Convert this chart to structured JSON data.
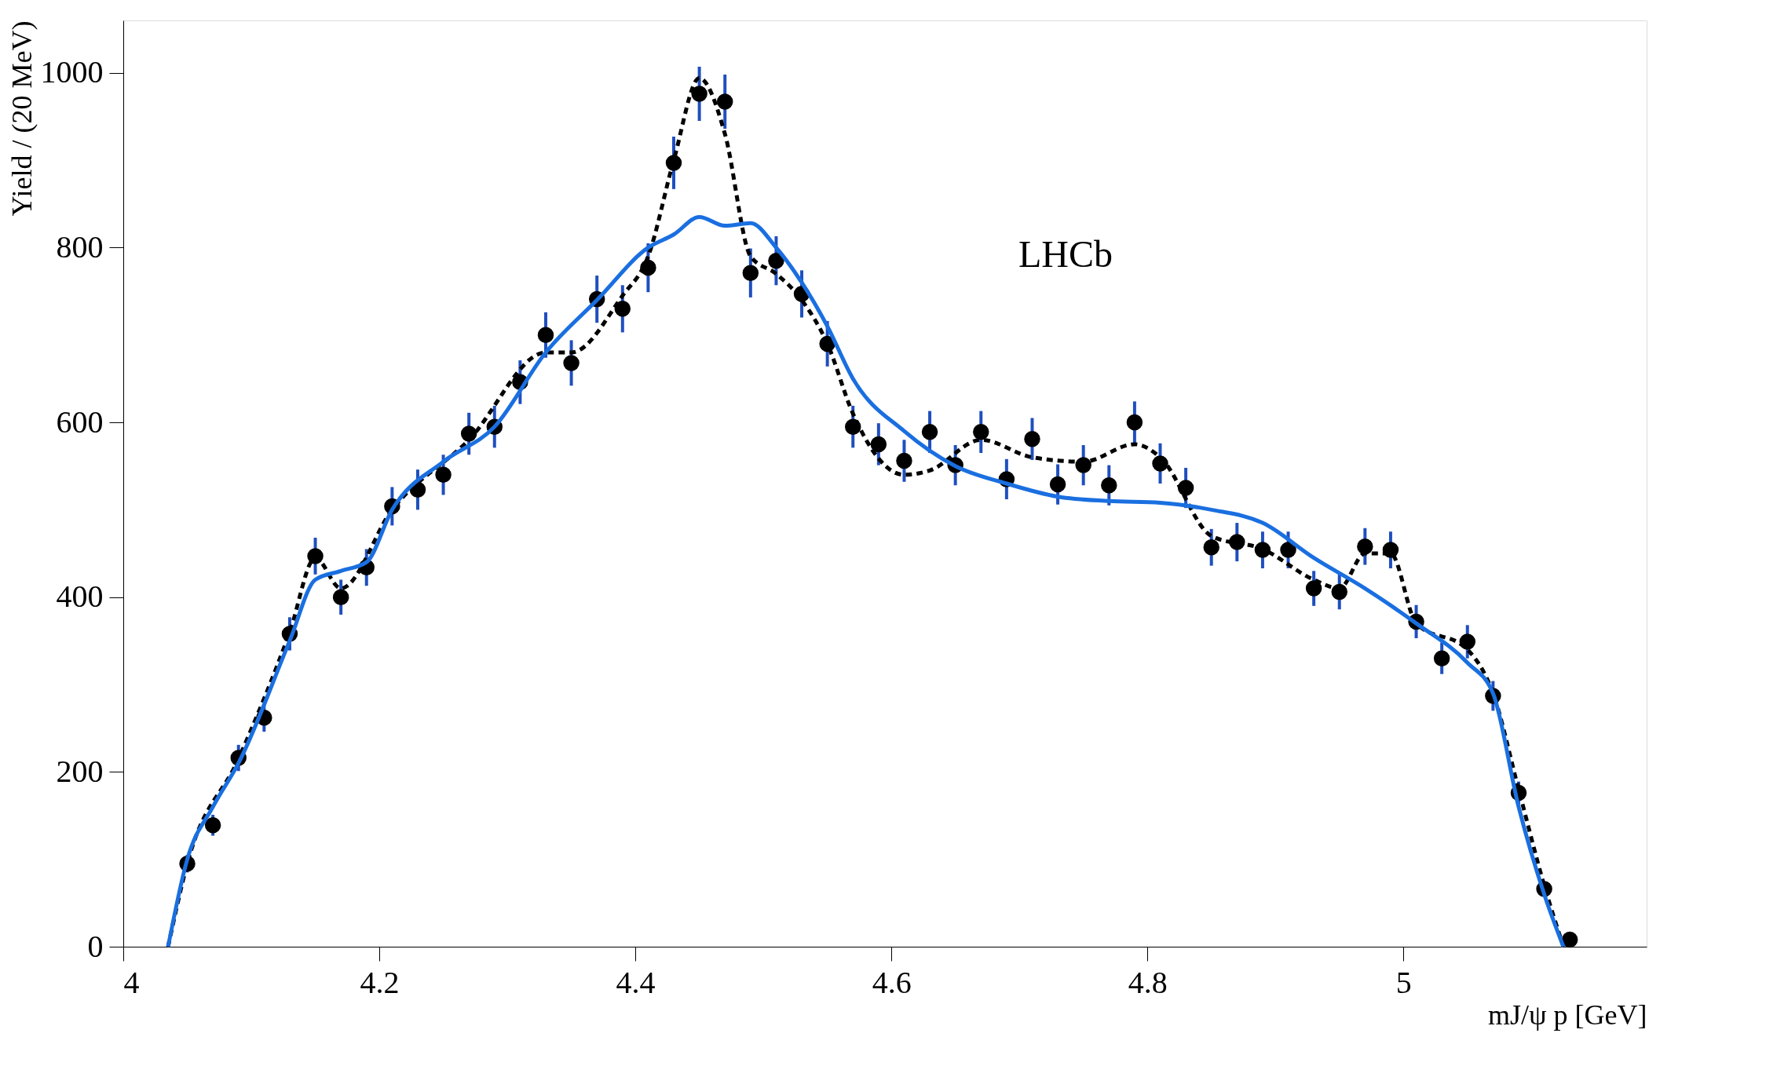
{
  "chart_data": {
    "type": "scatter",
    "ylabel": "Yield / (20 MeV)",
    "xlabel": "mJ/ψ p [GeV]",
    "xlim": [
      4,
      5.19
    ],
    "ylim": [
      0,
      1060
    ],
    "xticks": [
      4,
      4.2,
      4.4,
      4.6,
      4.8,
      5
    ],
    "yticks": [
      0,
      200,
      400,
      600,
      800,
      1000
    ],
    "grid": false,
    "annotations": [
      "LHCb"
    ],
    "series": [
      {
        "color": "#000000",
        "marker": "circle",
        "x": [
          4.05,
          4.07,
          4.09,
          4.11,
          4.13,
          4.15,
          4.17,
          4.19,
          4.21,
          4.23,
          4.25,
          4.27,
          4.29,
          4.31,
          4.33,
          4.35,
          4.37,
          4.39,
          4.41,
          4.43,
          4.45,
          4.47,
          4.49,
          4.51,
          4.53,
          4.55,
          4.57,
          4.59,
          4.61,
          4.63,
          4.65,
          4.67,
          4.69,
          4.71,
          4.73,
          4.75,
          4.77,
          4.79,
          4.81,
          4.83,
          4.85,
          4.87,
          4.89,
          4.91,
          4.93,
          4.95,
          4.97,
          4.99,
          5.01,
          5.03,
          5.05,
          5.07,
          5.09,
          5.11,
          5.13
        ],
        "values": [
          95,
          139,
          216,
          262,
          358,
          447,
          400,
          434,
          504,
          523,
          540,
          587,
          595,
          646,
          700,
          668,
          741,
          730,
          777,
          897,
          976,
          967,
          771,
          785,
          747,
          690,
          595,
          575,
          556,
          589,
          551,
          589,
          535,
          581,
          529,
          551,
          528,
          600,
          553,
          525,
          457,
          463,
          454,
          454,
          410,
          406,
          458,
          454,
          372,
          330,
          349,
          287,
          176,
          66,
          8
        ],
        "errors": [
          10,
          12,
          15,
          16,
          19,
          21,
          20,
          21,
          22,
          23,
          23,
          24,
          24,
          25,
          26,
          26,
          27,
          27,
          28,
          30,
          31,
          31,
          28,
          28,
          27,
          26,
          24,
          24,
          24,
          24,
          23,
          24,
          23,
          24,
          23,
          23,
          23,
          24,
          23,
          23,
          21,
          22,
          21,
          21,
          20,
          20,
          21,
          21,
          19,
          18,
          19,
          17,
          13,
          8,
          3
        ]
      },
      {
        "type": "line",
        "color": "#000000",
        "line_style": "dashed",
        "x": [
          4.035,
          4.05,
          4.09,
          4.13,
          4.15,
          4.17,
          4.21,
          4.27,
          4.33,
          4.35,
          4.39,
          4.41,
          4.43,
          4.45,
          4.47,
          4.49,
          4.51,
          4.53,
          4.55,
          4.57,
          4.61,
          4.63,
          4.67,
          4.71,
          4.75,
          4.79,
          4.81,
          4.85,
          4.89,
          4.93,
          4.95,
          4.97,
          4.99,
          5.01,
          5.05,
          5.07,
          5.09,
          5.11,
          5.125
        ],
        "values": [
          0,
          95,
          215,
          360,
          445,
          410,
          500,
          580,
          680,
          680,
          745,
          790,
          900,
          994,
          930,
          790,
          770,
          740,
          690,
          610,
          540,
          545,
          580,
          560,
          555,
          575,
          560,
          470,
          455,
          420,
          410,
          450,
          450,
          370,
          340,
          290,
          180,
          70,
          0
        ]
      },
      {
        "type": "line",
        "color": "#1a6fe0",
        "line_style": "solid",
        "x": [
          4.035,
          4.05,
          4.07,
          4.09,
          4.13,
          4.15,
          4.17,
          4.19,
          4.21,
          4.25,
          4.29,
          4.33,
          4.37,
          4.41,
          4.43,
          4.45,
          4.47,
          4.49,
          4.51,
          4.53,
          4.55,
          4.57,
          4.61,
          4.65,
          4.69,
          4.73,
          4.77,
          4.81,
          4.85,
          4.89,
          4.93,
          4.97,
          5.01,
          5.05,
          5.07,
          5.09,
          5.11,
          5.125
        ],
        "values": [
          0,
          100,
          160,
          210,
          350,
          420,
          430,
          440,
          500,
          555,
          595,
          680,
          740,
          800,
          815,
          835,
          825,
          828,
          800,
          760,
          710,
          650,
          590,
          550,
          530,
          515,
          510,
          508,
          500,
          485,
          445,
          410,
          370,
          325,
          290,
          160,
          60,
          0
        ]
      }
    ]
  }
}
